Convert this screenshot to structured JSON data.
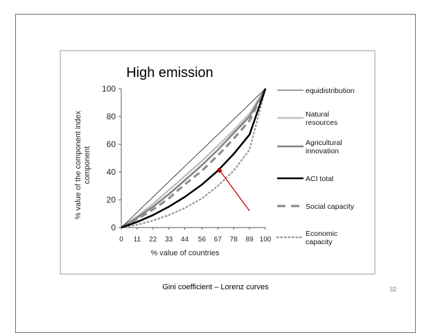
{
  "slide": {
    "caption": "Gini coefficient – Lorenz curves",
    "number": "32"
  },
  "chart_data": {
    "type": "line",
    "title": "High emission",
    "xlabel": "% value of countries",
    "ylabel": "% value of the component index component",
    "xlim": [
      0,
      100
    ],
    "ylim": [
      0,
      100
    ],
    "x_ticks": [
      "0",
      "11",
      "22",
      "33",
      "44",
      "56",
      "67",
      "78",
      "89",
      "100"
    ],
    "y_ticks": [
      "0",
      "20",
      "40",
      "60",
      "80",
      "100"
    ],
    "grid": false,
    "legend_position": "right",
    "x": [
      0,
      11,
      22,
      33,
      44,
      56,
      67,
      78,
      89,
      100
    ],
    "series": [
      {
        "name": "equidistribution",
        "color": "#000000",
        "style": "thin",
        "values": [
          0,
          11,
          22,
          33,
          44,
          56,
          67,
          78,
          89,
          100
        ]
      },
      {
        "name": "Natural resources",
        "color": "#c0c0c0",
        "style": "solid",
        "values": [
          0,
          8,
          17,
          27,
          37,
          48,
          59,
          70,
          82,
          100
        ]
      },
      {
        "name": "Agricultural innovation",
        "color": "#808080",
        "style": "solid",
        "values": [
          0,
          7,
          15,
          24,
          34,
          45,
          56,
          68,
          80,
          100
        ]
      },
      {
        "name": "ACI total",
        "color": "#000000",
        "style": "thick",
        "values": [
          0,
          4,
          9,
          15,
          22,
          31,
          41,
          53,
          67,
          100
        ]
      },
      {
        "name": "Social capacity",
        "color": "#8c8c8c",
        "style": "dashed",
        "values": [
          0,
          6,
          13,
          21,
          31,
          41,
          52,
          64,
          77,
          100
        ]
      },
      {
        "name": "Economic capacity",
        "color": "#999999",
        "style": "dotted",
        "values": [
          0,
          2,
          5,
          9,
          14,
          21,
          30,
          41,
          56,
          100
        ]
      }
    ],
    "legend_labels": [
      [
        "equidistribution"
      ],
      [
        "Natural",
        "resources"
      ],
      [
        "Agricultural",
        "innovation"
      ],
      [
        "ACI total"
      ],
      [
        "Social capacity"
      ],
      [
        "Economic",
        "capacity"
      ]
    ],
    "annotation": {
      "type": "arrow",
      "color": "#c00000",
      "from": [
        89,
        12
      ],
      "to": [
        67,
        43
      ]
    }
  }
}
